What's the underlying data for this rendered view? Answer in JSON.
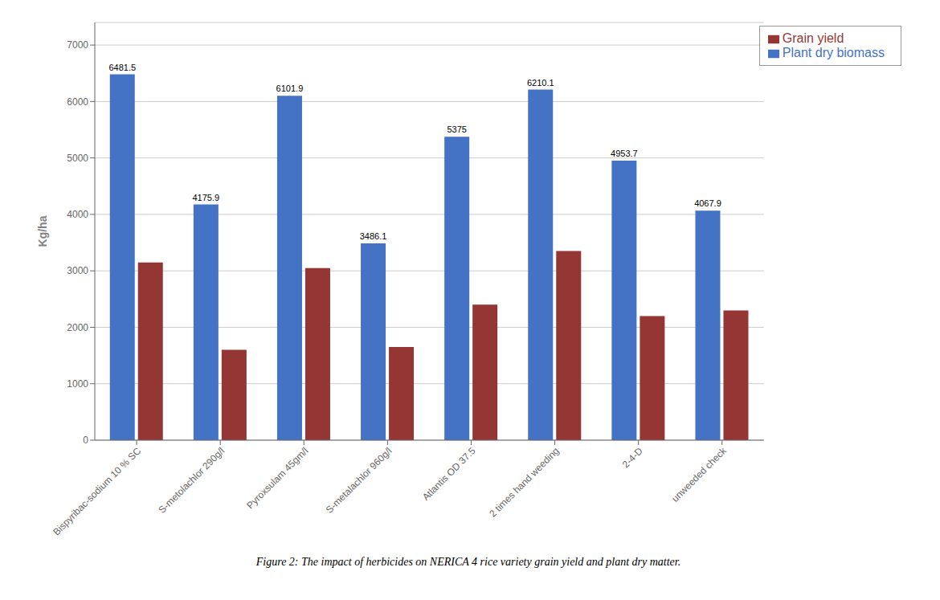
{
  "chart_data": {
    "type": "bar",
    "categories": [
      "Bispyribac-sodium 10 % SC",
      "S-metolachlor 290g/l",
      "Pyroxsulam 45gm/l",
      "S-metalachlor 960g/l",
      "Atlantis OD 37.5",
      "2 times hand weeding",
      "2-4-D",
      "unweeded check"
    ],
    "series": [
      {
        "name": "Plant dry biomass",
        "color": "#4472C4",
        "values": [
          6481.5,
          4175.9,
          6101.9,
          3486.1,
          5375,
          6210.1,
          4953.7,
          4067.9
        ],
        "data_labels": true
      },
      {
        "name": "Grain yield",
        "color": "#943634",
        "values": [
          3150,
          1600,
          3050,
          1650,
          2400,
          3350,
          2200,
          2300
        ]
      }
    ],
    "y_label": "Kg/ha",
    "ylim": [
      0,
      7400
    ],
    "yticks": [
      0,
      1000,
      2000,
      3000,
      4000,
      5000,
      6000,
      7000
    ],
    "grid": true,
    "legend": "upper right",
    "annotations": [
      "Figure 2: The impact of herbicides on NERICA 4 rice variety grain yield and plant dry matter."
    ]
  }
}
